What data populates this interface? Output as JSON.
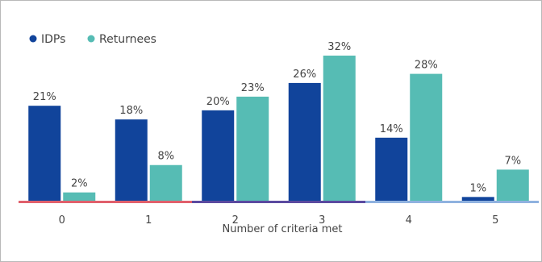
{
  "chart_data": {
    "type": "bar",
    "categories": [
      "0",
      "1",
      "2",
      "3",
      "4",
      "5"
    ],
    "series": [
      {
        "name": "IDPs",
        "values": [
          21,
          18,
          20,
          26,
          14,
          1
        ],
        "labels": [
          "21%",
          "18%",
          "20%",
          "26%",
          "14%",
          "1%"
        ],
        "color": "#11449b"
      },
      {
        "name": "Returnees",
        "values": [
          2,
          8,
          23,
          32,
          28,
          7
        ],
        "labels": [
          "2%",
          "8%",
          "23%",
          "32%",
          "28%",
          "7%"
        ],
        "color": "#56bcb4"
      }
    ],
    "xlabel": "Number of criteria met",
    "ylabel": "",
    "ylim": [
      0,
      35
    ],
    "grid": false,
    "legend_position": "top-left",
    "category_band_colors": [
      "#e0606c",
      "#e0606c",
      "#5b4aa0",
      "#5b4aa0",
      "#8fb2df",
      "#8fb2df"
    ]
  }
}
